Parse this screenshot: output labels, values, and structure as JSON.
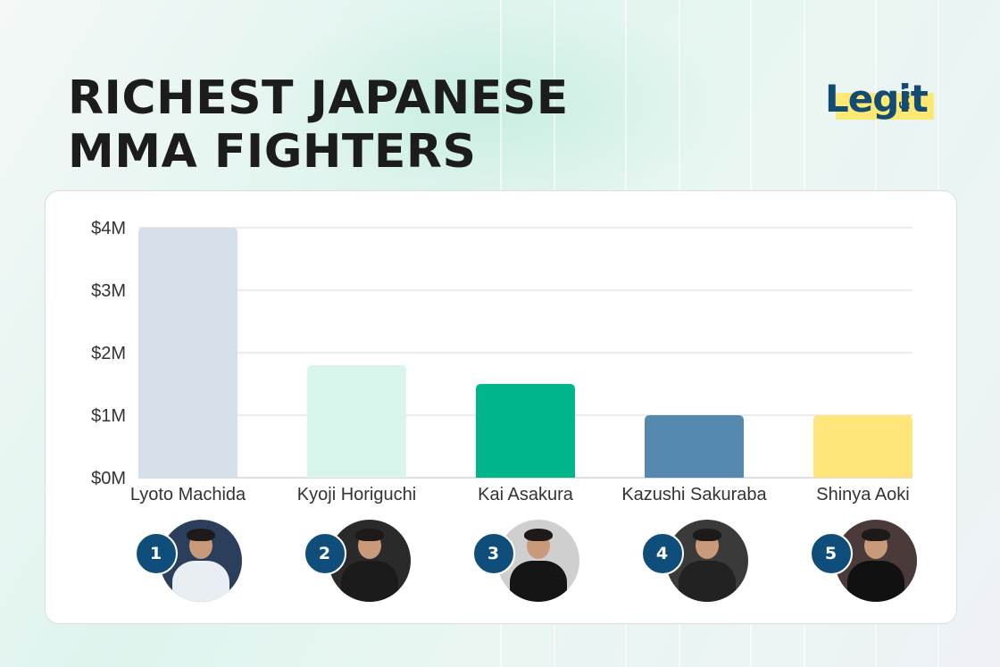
{
  "header": {
    "title_line1": "RICHEST JAPANESE",
    "title_line2": "MMA FIGHTERS",
    "logo_word": "Legit",
    "logo_tld": ".ng"
  },
  "colors": {
    "bar_1": "#d6e0ea",
    "bar_2": "#d8f5ec",
    "bar_3": "#00b48c",
    "bar_4": "#5689b0",
    "bar_5": "#ffe57a",
    "rank_badge": "#0f4d7a",
    "logo_blue": "#124b73",
    "logo_yellow": "#fde873"
  },
  "chart_data": {
    "type": "bar",
    "title": "RICHEST JAPANESE MMA FIGHTERS",
    "categories": [
      "Lyoto Machida",
      "Kyoji Horiguchi",
      "Kai Asakura",
      "Kazushi Sakuraba",
      "Shinya Aoki"
    ],
    "values": [
      4000000,
      1800000,
      1500000,
      1000000,
      1000000
    ],
    "ylim": [
      0,
      4000000
    ],
    "yticks": [
      0,
      1000000,
      2000000,
      3000000,
      4000000
    ],
    "ytick_labels": [
      "$0M",
      "$1M",
      "$2M",
      "$3M",
      "$4M"
    ],
    "grid": true,
    "legend": "none"
  },
  "fighters": [
    {
      "rank": "1",
      "name": "Lyoto Machida",
      "photo": "portrait-photo",
      "shirt": "#e8eef2",
      "bg": "#2b3f5c"
    },
    {
      "rank": "2",
      "name": "Kyoji Horiguchi",
      "photo": "portrait-photo",
      "shirt": "#1b1b1b",
      "bg": "#2a2a2a"
    },
    {
      "rank": "3",
      "name": "Kai Asakura",
      "photo": "portrait-photo",
      "shirt": "#151515",
      "bg": "#cfcfcf"
    },
    {
      "rank": "4",
      "name": "Kazushi Sakuraba",
      "photo": "portrait-photo",
      "shirt": "#222222",
      "bg": "#3a3a3a"
    },
    {
      "rank": "5",
      "name": "Shinya Aoki",
      "photo": "portrait-photo",
      "shirt": "#111111",
      "bg": "#4a3a3a"
    }
  ]
}
